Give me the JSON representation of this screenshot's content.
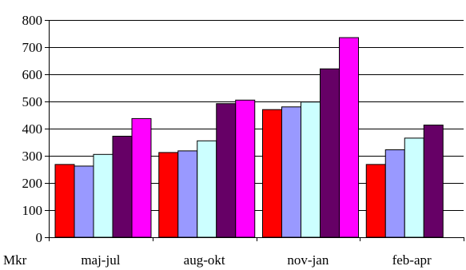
{
  "chart_data": {
    "type": "bar",
    "ylim": [
      0,
      800
    ],
    "yticks": [
      0,
      100,
      200,
      300,
      400,
      500,
      600,
      700,
      800
    ],
    "grid": true,
    "unit_label": "Mkr",
    "categories": [
      "maj-jul",
      "aug-okt",
      "nov-jan",
      "feb-apr"
    ],
    "series": [
      {
        "color": "#ff0000",
        "values": [
          268,
          312,
          470,
          268
        ]
      },
      {
        "color": "#9999ff",
        "values": [
          262,
          318,
          480,
          322
        ]
      },
      {
        "color": "#ccffff",
        "values": [
          305,
          355,
          498,
          365
        ]
      },
      {
        "color": "#660066",
        "values": [
          372,
          492,
          620,
          413
        ]
      },
      {
        "color": "#ff00ff",
        "values": [
          437,
          505,
          735,
          null
        ]
      }
    ]
  }
}
